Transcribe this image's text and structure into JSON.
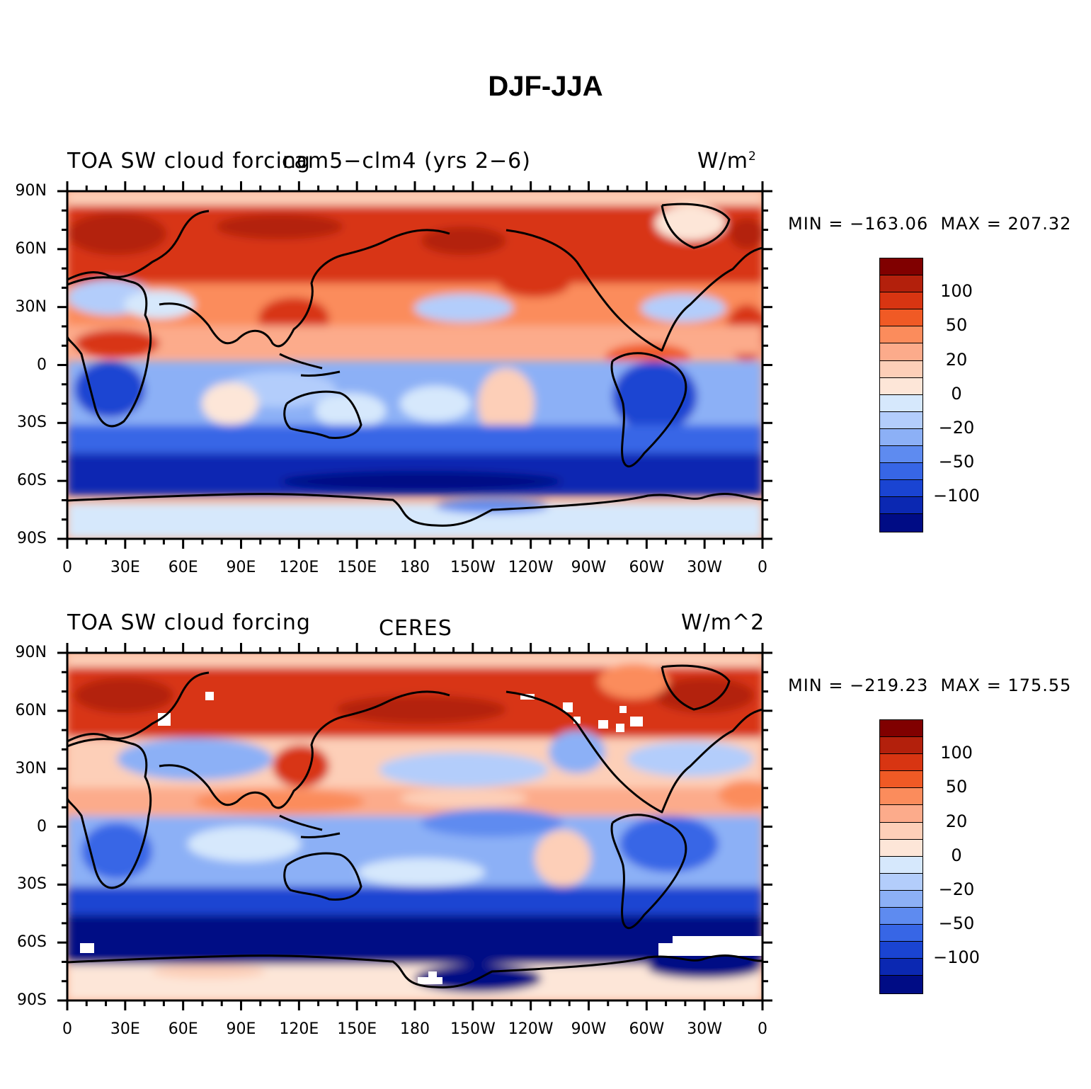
{
  "title": "DJF-JJA",
  "lat_labels": [
    "90N",
    "60N",
    "30N",
    "0",
    "30S",
    "60S",
    "90S"
  ],
  "lon_labels": [
    "0",
    "30E",
    "60E",
    "90E",
    "120E",
    "150E",
    "180",
    "150W",
    "120W",
    "90W",
    "60W",
    "30W",
    "0"
  ],
  "colorbar": {
    "labels": [
      "100",
      "50",
      "20",
      "0",
      "−20",
      "−50",
      "−100"
    ],
    "colors": [
      "#800000",
      "#b3200c",
      "#d83512",
      "#f05a25",
      "#fb8c5c",
      "#fcab8b",
      "#fdcfb8",
      "#fde6d8",
      "#d6e8fc",
      "#b3cdfb",
      "#8cb0f6",
      "#5e8bf0",
      "#3766e6",
      "#1a44d2",
      "#0b28b2",
      "#000c85"
    ]
  },
  "panels": [
    {
      "left_title": "TOA SW cloud forcing",
      "center_title": "cam5−clm4 (yrs 2−6)",
      "units": "W/m",
      "units_sup": "2",
      "min_label": "MIN",
      "min_value": "−163.06",
      "max_label": "MAX",
      "max_value": "207.32"
    },
    {
      "left_title": "TOA SW cloud forcing",
      "center_title": "CERES",
      "units": "W/m^2",
      "units_sup": "",
      "min_label": "MIN",
      "min_value": "−219.23",
      "max_label": "MAX",
      "max_value": "175.55"
    }
  ]
}
